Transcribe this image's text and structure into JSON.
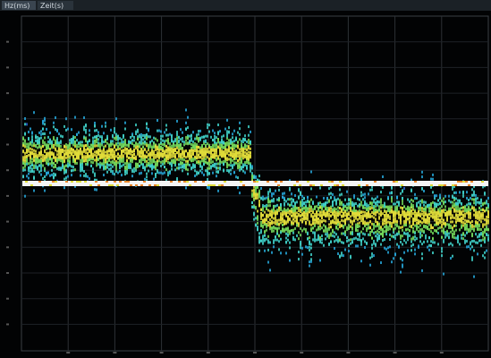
{
  "header": {
    "tabs": [
      "Hz(ms)",
      "Zeit(s)"
    ]
  }
}
